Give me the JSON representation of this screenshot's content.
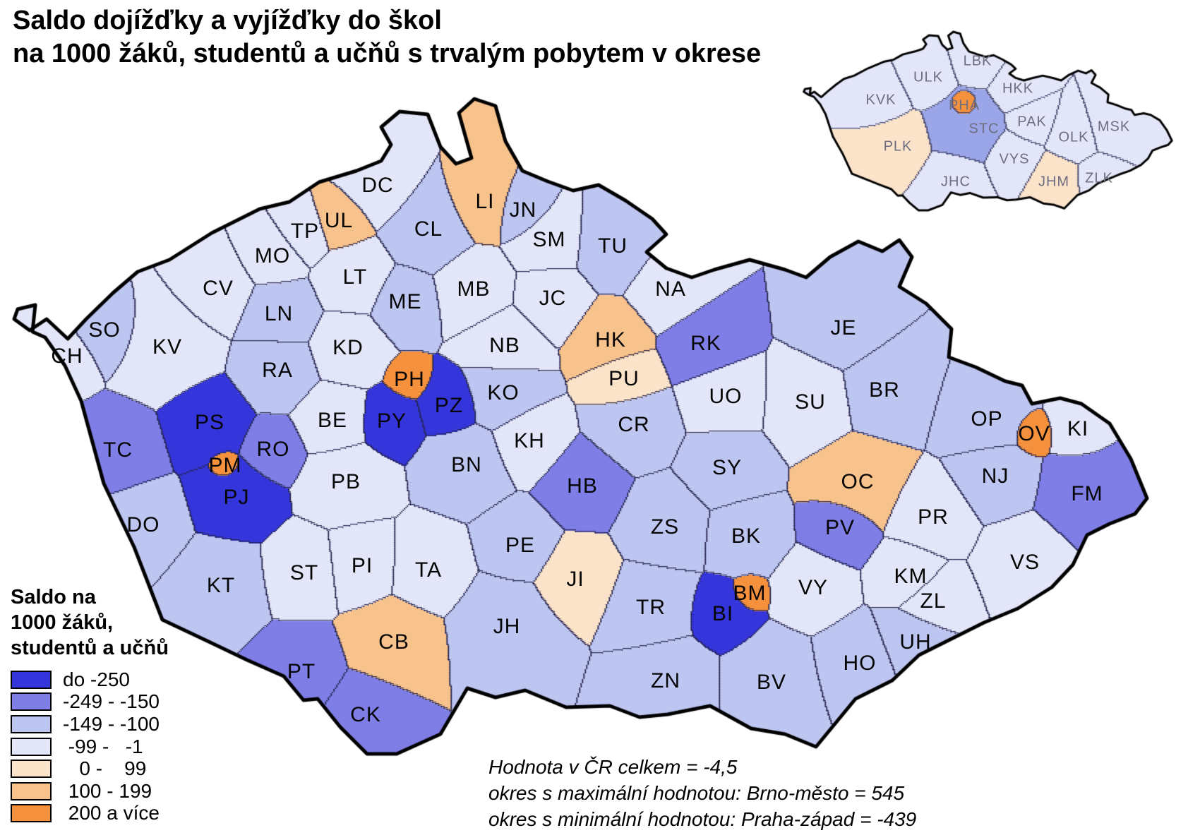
{
  "title": {
    "line1": "Saldo dojížďky a vyjížďky do škol",
    "line2": "na 1000 žáků, studentů a učňů s trvalým pobytem v okrese"
  },
  "legend": {
    "title_lines": [
      "Saldo na",
      "1000 žáků,",
      "studentů a učňů"
    ],
    "items": [
      {
        "key": "cat1",
        "label": "do -250",
        "color": "#3535DC"
      },
      {
        "key": "cat2",
        "label": "-249 - -150",
        "color": "#7E7EE6"
      },
      {
        "key": "cat3",
        "label": "-149 - -100",
        "color": "#BDC5F1"
      },
      {
        "key": "cat4",
        "label": " -99 -   -1",
        "color": "#E3E6F8"
      },
      {
        "key": "cat5",
        "label": "   0 -    99",
        "color": "#FBE3C9"
      },
      {
        "key": "cat6",
        "label": " 100 - 199",
        "color": "#F8C28C"
      },
      {
        "key": "cat7",
        "label": " 200 a více",
        "color": "#F5913C"
      }
    ]
  },
  "annotations": [
    "Hodnota v ČR celkem = -4,5",
    "okres s maximální hodnotou: Brno-město = 545",
    "okres s minimální hodnotou: Praha-západ = -439"
  ],
  "map": {
    "districts": [
      {
        "code": "CH",
        "cat": "cat4"
      },
      {
        "code": "SO",
        "cat": "cat3"
      },
      {
        "code": "KV",
        "cat": "cat4"
      },
      {
        "code": "CV",
        "cat": "cat4"
      },
      {
        "code": "MO",
        "cat": "cat4"
      },
      {
        "code": "TP",
        "cat": "cat4"
      },
      {
        "code": "UL",
        "cat": "cat6"
      },
      {
        "code": "DC",
        "cat": "cat4"
      },
      {
        "code": "LT",
        "cat": "cat4"
      },
      {
        "code": "LN",
        "cat": "cat3"
      },
      {
        "code": "RA",
        "cat": "cat3"
      },
      {
        "code": "KD",
        "cat": "cat4"
      },
      {
        "code": "ME",
        "cat": "cat3"
      },
      {
        "code": "CL",
        "cat": "cat3"
      },
      {
        "code": "LI",
        "cat": "cat6"
      },
      {
        "code": "JN",
        "cat": "cat3"
      },
      {
        "code": "SM",
        "cat": "cat4"
      },
      {
        "code": "TU",
        "cat": "cat3"
      },
      {
        "code": "MB",
        "cat": "cat4"
      },
      {
        "code": "JC",
        "cat": "cat4"
      },
      {
        "code": "NA",
        "cat": "cat4"
      },
      {
        "code": "NB",
        "cat": "cat4"
      },
      {
        "code": "HK",
        "cat": "cat6"
      },
      {
        "code": "RK",
        "cat": "cat2"
      },
      {
        "code": "PU",
        "cat": "cat5"
      },
      {
        "code": "KO",
        "cat": "cat3"
      },
      {
        "code": "PH",
        "cat": "cat7"
      },
      {
        "code": "PZ",
        "cat": "cat1"
      },
      {
        "code": "PY",
        "cat": "cat1"
      },
      {
        "code": "BE",
        "cat": "cat4"
      },
      {
        "code": "KH",
        "cat": "cat4"
      },
      {
        "code": "CR",
        "cat": "cat3"
      },
      {
        "code": "UO",
        "cat": "cat4"
      },
      {
        "code": "SU",
        "cat": "cat4"
      },
      {
        "code": "JE",
        "cat": "cat3"
      },
      {
        "code": "BR",
        "cat": "cat3"
      },
      {
        "code": "OP",
        "cat": "cat3"
      },
      {
        "code": "OV",
        "cat": "cat7"
      },
      {
        "code": "KI",
        "cat": "cat4"
      },
      {
        "code": "FM",
        "cat": "cat2"
      },
      {
        "code": "NJ",
        "cat": "cat3"
      },
      {
        "code": "OC",
        "cat": "cat6"
      },
      {
        "code": "PR",
        "cat": "cat4"
      },
      {
        "code": "PV",
        "cat": "cat2"
      },
      {
        "code": "SY",
        "cat": "cat3"
      },
      {
        "code": "ZS",
        "cat": "cat3"
      },
      {
        "code": "HB",
        "cat": "cat2"
      },
      {
        "code": "BN",
        "cat": "cat3"
      },
      {
        "code": "PB",
        "cat": "cat4"
      },
      {
        "code": "PS",
        "cat": "cat1"
      },
      {
        "code": "PM",
        "cat": "cat7"
      },
      {
        "code": "RO",
        "cat": "cat2"
      },
      {
        "code": "TC",
        "cat": "cat2"
      },
      {
        "code": "PJ",
        "cat": "cat1"
      },
      {
        "code": "DO",
        "cat": "cat3"
      },
      {
        "code": "KT",
        "cat": "cat3"
      },
      {
        "code": "ST",
        "cat": "cat4"
      },
      {
        "code": "PI",
        "cat": "cat4"
      },
      {
        "code": "TA",
        "cat": "cat4"
      },
      {
        "code": "PE",
        "cat": "cat3"
      },
      {
        "code": "JI",
        "cat": "cat5"
      },
      {
        "code": "JH",
        "cat": "cat3"
      },
      {
        "code": "TR",
        "cat": "cat3"
      },
      {
        "code": "BK",
        "cat": "cat3"
      },
      {
        "code": "BM",
        "cat": "cat7"
      },
      {
        "code": "BI",
        "cat": "cat1"
      },
      {
        "code": "VY",
        "cat": "cat4"
      },
      {
        "code": "KM",
        "cat": "cat4"
      },
      {
        "code": "ZL",
        "cat": "cat4"
      },
      {
        "code": "UH",
        "cat": "cat3"
      },
      {
        "code": "HO",
        "cat": "cat3"
      },
      {
        "code": "BV",
        "cat": "cat3"
      },
      {
        "code": "ZN",
        "cat": "cat3"
      },
      {
        "code": "VS",
        "cat": "cat4"
      },
      {
        "code": "PT",
        "cat": "cat2"
      },
      {
        "code": "CK",
        "cat": "cat2"
      },
      {
        "code": "CB",
        "cat": "cat6"
      }
    ]
  },
  "inset": {
    "region_colors": {
      "stc": "#9AA6E8"
    },
    "regions": [
      {
        "code": "KVK",
        "cat": "cat4"
      },
      {
        "code": "ULK",
        "cat": "cat4"
      },
      {
        "code": "LBK",
        "cat": "cat4"
      },
      {
        "code": "HKK",
        "cat": "cat4"
      },
      {
        "code": "PAK",
        "cat": "cat4"
      },
      {
        "code": "OLK",
        "cat": "cat4"
      },
      {
        "code": "MSK",
        "cat": "cat4"
      },
      {
        "code": "ZLK",
        "cat": "cat4"
      },
      {
        "code": "VYS",
        "cat": "cat4"
      },
      {
        "code": "JHC",
        "cat": "cat4"
      },
      {
        "code": "JHM",
        "cat": "cat5"
      },
      {
        "code": "PLK",
        "cat": "cat5"
      },
      {
        "code": "STC",
        "cat": "stc"
      },
      {
        "code": "PHA",
        "cat": "cat7"
      }
    ]
  }
}
